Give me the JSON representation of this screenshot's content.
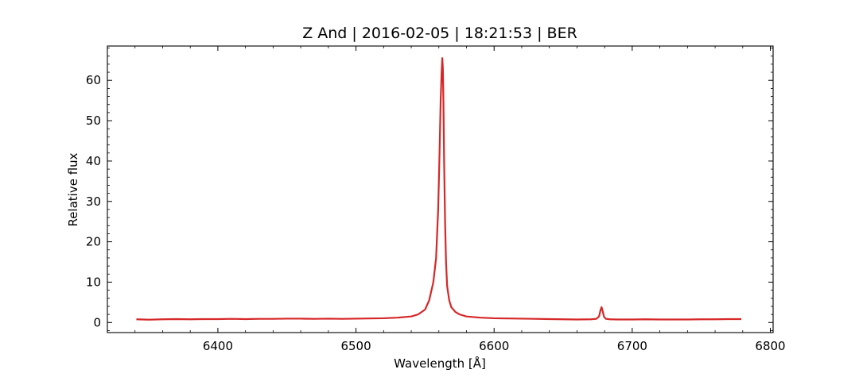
{
  "chart_data": {
    "type": "line",
    "title": "Z And | 2016-02-05 | 18:21:53 | BER",
    "xlabel": "Wavelength [Å]",
    "ylabel": "Relative flux",
    "xlim": [
      6320,
      6802
    ],
    "ylim": [
      -2.5,
      68.5
    ],
    "xticks": [
      6400,
      6500,
      6600,
      6700,
      6800
    ],
    "yticks": [
      0,
      10,
      20,
      30,
      40,
      50,
      60
    ],
    "grid": false,
    "series": [
      {
        "color": "#d62728",
        "x": [
          6341,
          6350,
          6360,
          6370,
          6380,
          6390,
          6400,
          6410,
          6420,
          6430,
          6440,
          6450,
          6460,
          6470,
          6480,
          6490,
          6500,
          6510,
          6520,
          6530,
          6540,
          6545,
          6550,
          6553,
          6556,
          6558,
          6559.5,
          6560.5,
          6561.3,
          6562,
          6562.5,
          6562.9,
          6563.3,
          6563.8,
          6564.5,
          6565.2,
          6566,
          6567.5,
          6569,
          6572,
          6575,
          6580,
          6590,
          6600,
          6610,
          6620,
          6630,
          6640,
          6650,
          6660,
          6670,
          6674,
          6676,
          6677,
          6677.8,
          6678.6,
          6679.6,
          6681,
          6684,
          6690,
          6700,
          6710,
          6720,
          6730,
          6740,
          6750,
          6760,
          6770,
          6779
        ],
        "y": [
          0.8,
          0.7,
          0.8,
          0.85,
          0.8,
          0.85,
          0.85,
          0.9,
          0.85,
          0.9,
          0.9,
          0.95,
          0.95,
          0.9,
          0.95,
          0.9,
          0.95,
          1.0,
          1.05,
          1.2,
          1.5,
          2.0,
          3.2,
          5.5,
          10.0,
          16.0,
          28.0,
          42.0,
          55.0,
          62.0,
          65.5,
          63.0,
          55.0,
          40.0,
          25.0,
          15.0,
          9.0,
          5.5,
          3.8,
          2.6,
          2.0,
          1.5,
          1.2,
          1.05,
          1.0,
          0.95,
          0.9,
          0.85,
          0.8,
          0.75,
          0.8,
          0.9,
          1.5,
          3.0,
          3.8,
          2.8,
          1.4,
          0.9,
          0.8,
          0.75,
          0.75,
          0.8,
          0.75,
          0.75,
          0.75,
          0.8,
          0.8,
          0.85,
          0.85
        ]
      }
    ]
  }
}
